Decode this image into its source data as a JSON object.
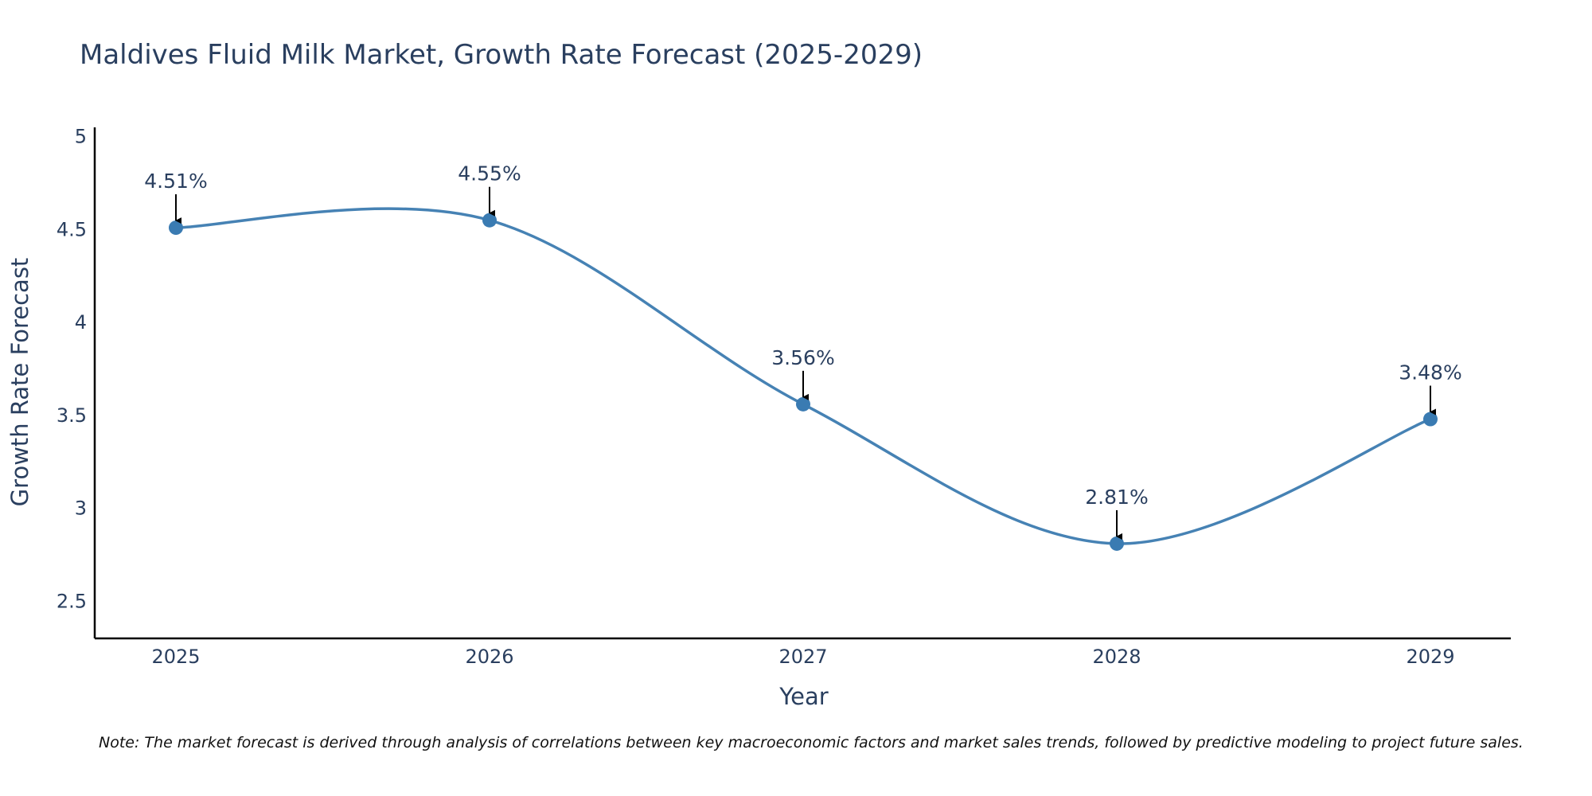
{
  "chart_data": {
    "type": "line",
    "title": "Maldives Fluid Milk Market, Growth Rate Forecast (2025-2029)",
    "xlabel": "Year",
    "ylabel": "Growth Rate Forecast",
    "categories": [
      "2025",
      "2026",
      "2027",
      "2028",
      "2029"
    ],
    "values": [
      4.51,
      4.55,
      3.56,
      2.81,
      3.48
    ],
    "data_labels": [
      "4.51%",
      "4.55%",
      "3.56%",
      "2.81%",
      "3.48%"
    ],
    "yticks": [
      2.5,
      3,
      3.5,
      4,
      4.5,
      5
    ],
    "ytick_labels": [
      "2.5",
      "3",
      "3.5",
      "4",
      "4.5",
      "5"
    ],
    "ylim": [
      2.3,
      5.05
    ],
    "grid": false,
    "line_shape": "spline",
    "line_color": "#4682b4",
    "marker_color": "#3a7bb2",
    "note": "Note: The market forecast is derived through analysis of correlations between key macroeconomic factors and market sales trends, followed by predictive modeling to project future sales."
  }
}
